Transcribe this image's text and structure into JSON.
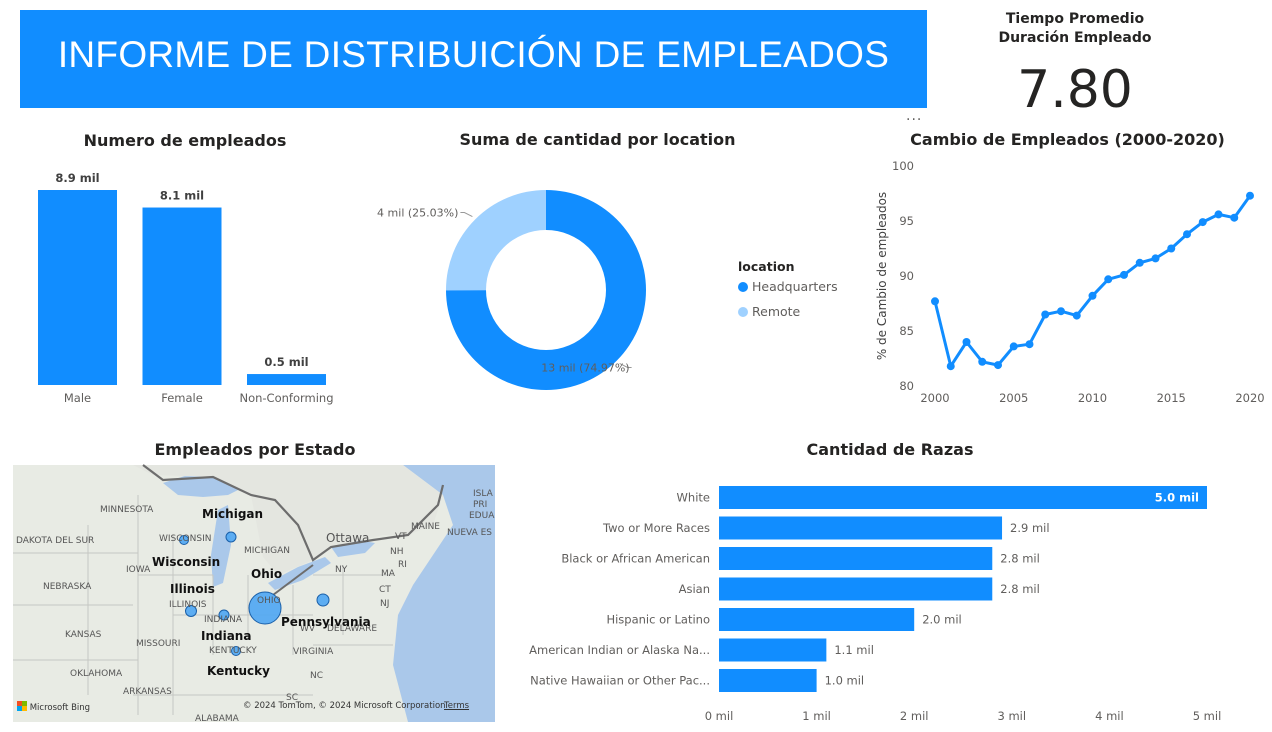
{
  "header": {
    "title": "INFORME DE DISTRIBUICIÓN DE EMPLEADOS"
  },
  "kpi": {
    "label_line1": "Tiempo Promedio",
    "label_line2": "Duración Empleado",
    "value": "7.80"
  },
  "more_icon": "...",
  "colors": {
    "accent": "#118dff",
    "accent_light": "#9fd1ff",
    "text": "#252423",
    "muted": "#605e5c"
  },
  "chart_data": [
    {
      "id": "gender",
      "type": "bar",
      "title": "Numero de empleados",
      "categories": [
        "Male",
        "Female",
        "Non-Conforming"
      ],
      "values": [
        8.9,
        8.1,
        0.5
      ],
      "data_labels": [
        "8.9 mil",
        "8.1 mil",
        "0.5 mil"
      ],
      "unit": "mil",
      "ylim": [
        0,
        8.9
      ]
    },
    {
      "id": "location",
      "type": "pie",
      "subtype": "donut",
      "title": "Suma de cantidad por location",
      "legend_title": "location",
      "legend_position": "right",
      "slices": [
        {
          "label": "Headquarters",
          "value": 13,
          "percent": 74.97,
          "data_label": "13 mil (74.97%)",
          "color": "#118dff"
        },
        {
          "label": "Remote",
          "value": 4,
          "percent": 25.03,
          "data_label": "4 mil (25.03%)",
          "color": "#9fd1ff"
        }
      ]
    },
    {
      "id": "change",
      "type": "line",
      "title": "Cambio de Empleados (2000-2020)",
      "ylabel": "% de Cambio de empleados",
      "x": [
        2000,
        2001,
        2002,
        2003,
        2004,
        2005,
        2006,
        2007,
        2008,
        2009,
        2010,
        2011,
        2012,
        2013,
        2014,
        2015,
        2016,
        2017,
        2018,
        2019,
        2020
      ],
      "y": [
        87.7,
        81.8,
        84.0,
        82.2,
        81.9,
        83.6,
        83.8,
        86.5,
        86.8,
        86.4,
        88.2,
        89.7,
        90.1,
        91.2,
        91.6,
        92.5,
        93.8,
        94.9,
        95.6,
        95.3,
        97.3
      ],
      "xticks": [
        "2000",
        "2005",
        "2010",
        "2015",
        "2020"
      ],
      "yticks": [
        "80",
        "85",
        "90",
        "95",
        "100"
      ],
      "xlim": [
        2000,
        2020
      ],
      "ylim": [
        80,
        100
      ],
      "grid": false
    },
    {
      "id": "races",
      "type": "bar",
      "orientation": "horizontal",
      "title": "Cantidad de Razas",
      "categories": [
        "White",
        "Two or More Races",
        "Black or African American",
        "Asian",
        "Hispanic or Latino",
        "American Indian or Alaska Na...",
        "Native Hawaiian or Other Pac..."
      ],
      "values": [
        5.0,
        2.9,
        2.8,
        2.8,
        2.0,
        1.1,
        1.0
      ],
      "data_labels": [
        "5.0 mil",
        "2.9 mil",
        "2.8 mil",
        "2.8 mil",
        "2.0 mil",
        "1.1 mil",
        "1.0 mil"
      ],
      "xticks": [
        "0 mil",
        "1 mil",
        "2 mil",
        "3 mil",
        "4 mil",
        "5 mil"
      ],
      "xlim": [
        0,
        5
      ]
    }
  ],
  "map": {
    "title": "Empleados por Estado",
    "states": [
      "Michigan",
      "Wisconsin",
      "Ohio",
      "Illinois",
      "Pennsylvania",
      "Indiana",
      "Kentucky"
    ],
    "base_labels": [
      "MINNESOTA",
      "DAKOTA DEL SUR",
      "IOWA",
      "NEBRASKA",
      "KANSAS",
      "MISSOURI",
      "OKLAHOMA",
      "ARKANSAS",
      "ALABAMA",
      "ILLINOIS",
      "INDIANA",
      "OHIO",
      "KENTUCKY",
      "VIRGINIA",
      "DELAWARE",
      "NC",
      "SC",
      "NY",
      "MA",
      "CT",
      "NJ",
      "MAINE",
      "VT",
      "NH",
      "RI",
      "WV",
      "Ottawa",
      "NUEVA ES",
      "ISLA",
      "PRI",
      "EDUA",
      "WISCONSIN",
      "MICHIGAN"
    ],
    "footer_brand": "Microsoft Bing",
    "footer_copyright": "© 2024 TomTom, © 2024 Microsoft Corporation",
    "footer_terms": "Terms"
  }
}
